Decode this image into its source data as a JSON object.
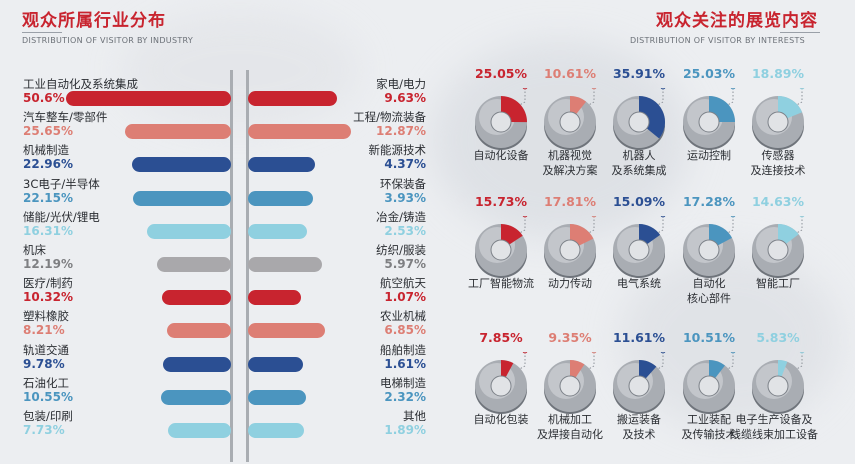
{
  "industry": {
    "title": "观众所属行业分布",
    "subtitle": "DISTRIBUTION OF VISITOR BY INDUSTRY"
  },
  "interests": {
    "title": "观众关注的展览内容",
    "subtitle": "DISTRIBUTION OF VISITOR BY INTERESTS"
  },
  "colors": {
    "red": "#c8242f",
    "salmon": "#dd7e74",
    "navy": "#2b4f93",
    "teal": "#4b95bf",
    "lightcyan": "#8fd0e0",
    "gray": "#a9a8ab",
    "pctgray": "#7e7f82"
  },
  "chart_data": [
    {
      "type": "bar",
      "title": "观众所属行业分布",
      "subtitle": "DISTRIBUTION OF VISITOR BY INDUSTRY",
      "series": [
        {
          "side": "left",
          "categories": [
            "工业自动化及系统集成",
            "汽车整车/零部件",
            "机械制造",
            "3C电子/半导体",
            "储能/光伏/锂电",
            "机床",
            "医疗/制药",
            "塑料橡胶",
            "轨道交通",
            "石油化工",
            "包装/印刷"
          ],
          "labels": [
            "50.6%",
            "25.65%",
            "22.96%",
            "22.15%",
            "16.31%",
            "12.19%",
            "10.32%",
            "8.21%",
            "9.78%",
            "10.55%",
            "7.73%"
          ],
          "values": [
            50.6,
            25.65,
            22.96,
            22.15,
            16.31,
            12.19,
            10.32,
            8.21,
            9.78,
            10.55,
            7.73
          ]
        },
        {
          "side": "right",
          "categories": [
            "家电/电力",
            "工程/物流装备",
            "新能源技术",
            "环保装备",
            "冶金/铸造",
            "纺织/服装",
            "航空航天",
            "农业机械",
            "船舶制造",
            "电梯制造",
            "其他"
          ],
          "labels": [
            "9.63%",
            "12.87%",
            "4.37%",
            "3.93%",
            "2.53%",
            "5.97%",
            "1.07%",
            "6.85%",
            "1.61%",
            "2.32%",
            "1.89%"
          ],
          "values": [
            9.63,
            12.87,
            4.37,
            3.93,
            2.53,
            5.97,
            1.07,
            6.85,
            1.61,
            2.32,
            1.89
          ]
        }
      ],
      "row_colors": [
        "red",
        "salmon",
        "navy",
        "teal",
        "lightcyan",
        "gray",
        "red",
        "salmon",
        "navy",
        "teal",
        "lightcyan"
      ]
    },
    {
      "type": "pie",
      "title": "观众关注的展览内容",
      "subtitle": "DISTRIBUTION OF VISITOR BY INTERESTS",
      "items": [
        {
          "name": "自动化设备",
          "lines": [
            "自动化设备"
          ],
          "label": "25.05%",
          "value": 25.05,
          "color": "red"
        },
        {
          "name": "机器视觉及解决方案",
          "lines": [
            "机器视觉",
            "及解决方案"
          ],
          "label": "10.61%",
          "value": 10.61,
          "color": "salmon"
        },
        {
          "name": "机器人及系统集成",
          "lines": [
            "机器人",
            "及系统集成"
          ],
          "label": "35.91%",
          "value": 35.91,
          "color": "navy"
        },
        {
          "name": "运动控制",
          "lines": [
            "运动控制"
          ],
          "label": "25.03%",
          "value": 25.03,
          "color": "teal"
        },
        {
          "name": "传感器及连接技术",
          "lines": [
            "传感器",
            "及连接技术"
          ],
          "label": "18.89%",
          "value": 18.89,
          "color": "lightcyan"
        },
        {
          "name": "工厂智能物流",
          "lines": [
            "工厂智能物流"
          ],
          "label": "15.73%",
          "value": 15.73,
          "color": "red"
        },
        {
          "name": "动力传动",
          "lines": [
            "动力传动"
          ],
          "label": "17.81%",
          "value": 17.81,
          "color": "salmon"
        },
        {
          "name": "电气系统",
          "lines": [
            "电气系统"
          ],
          "label": "15.09%",
          "value": 15.09,
          "color": "navy"
        },
        {
          "name": "自动化核心部件",
          "lines": [
            "自动化",
            "核心部件"
          ],
          "label": "17.28%",
          "value": 17.28,
          "color": "teal"
        },
        {
          "name": "智能工厂",
          "lines": [
            "智能工厂"
          ],
          "label": "14.63%",
          "value": 14.63,
          "color": "lightcyan"
        },
        {
          "name": "自动化包装",
          "lines": [
            "自动化包装"
          ],
          "label": "7.85%",
          "value": 7.85,
          "color": "red"
        },
        {
          "name": "机械加工及焊接自动化",
          "lines": [
            "机械加工",
            "及焊接自动化"
          ],
          "label": "9.35%",
          "value": 9.35,
          "color": "salmon"
        },
        {
          "name": "搬运装备及技术",
          "lines": [
            "搬运装备",
            "及技术"
          ],
          "label": "11.61%",
          "value": 11.61,
          "color": "navy"
        },
        {
          "name": "工业装配及传输技术",
          "lines": [
            "工业装配",
            "及传输技术"
          ],
          "label": "10.51%",
          "value": 10.51,
          "color": "teal"
        },
        {
          "name": "电子生产设备及线缆线束加工设备",
          "lines": [
            "电子生产设备及",
            "线缆线束加工设备"
          ],
          "label": "5.83%",
          "value": 5.83,
          "color": "lightcyan"
        }
      ]
    }
  ]
}
